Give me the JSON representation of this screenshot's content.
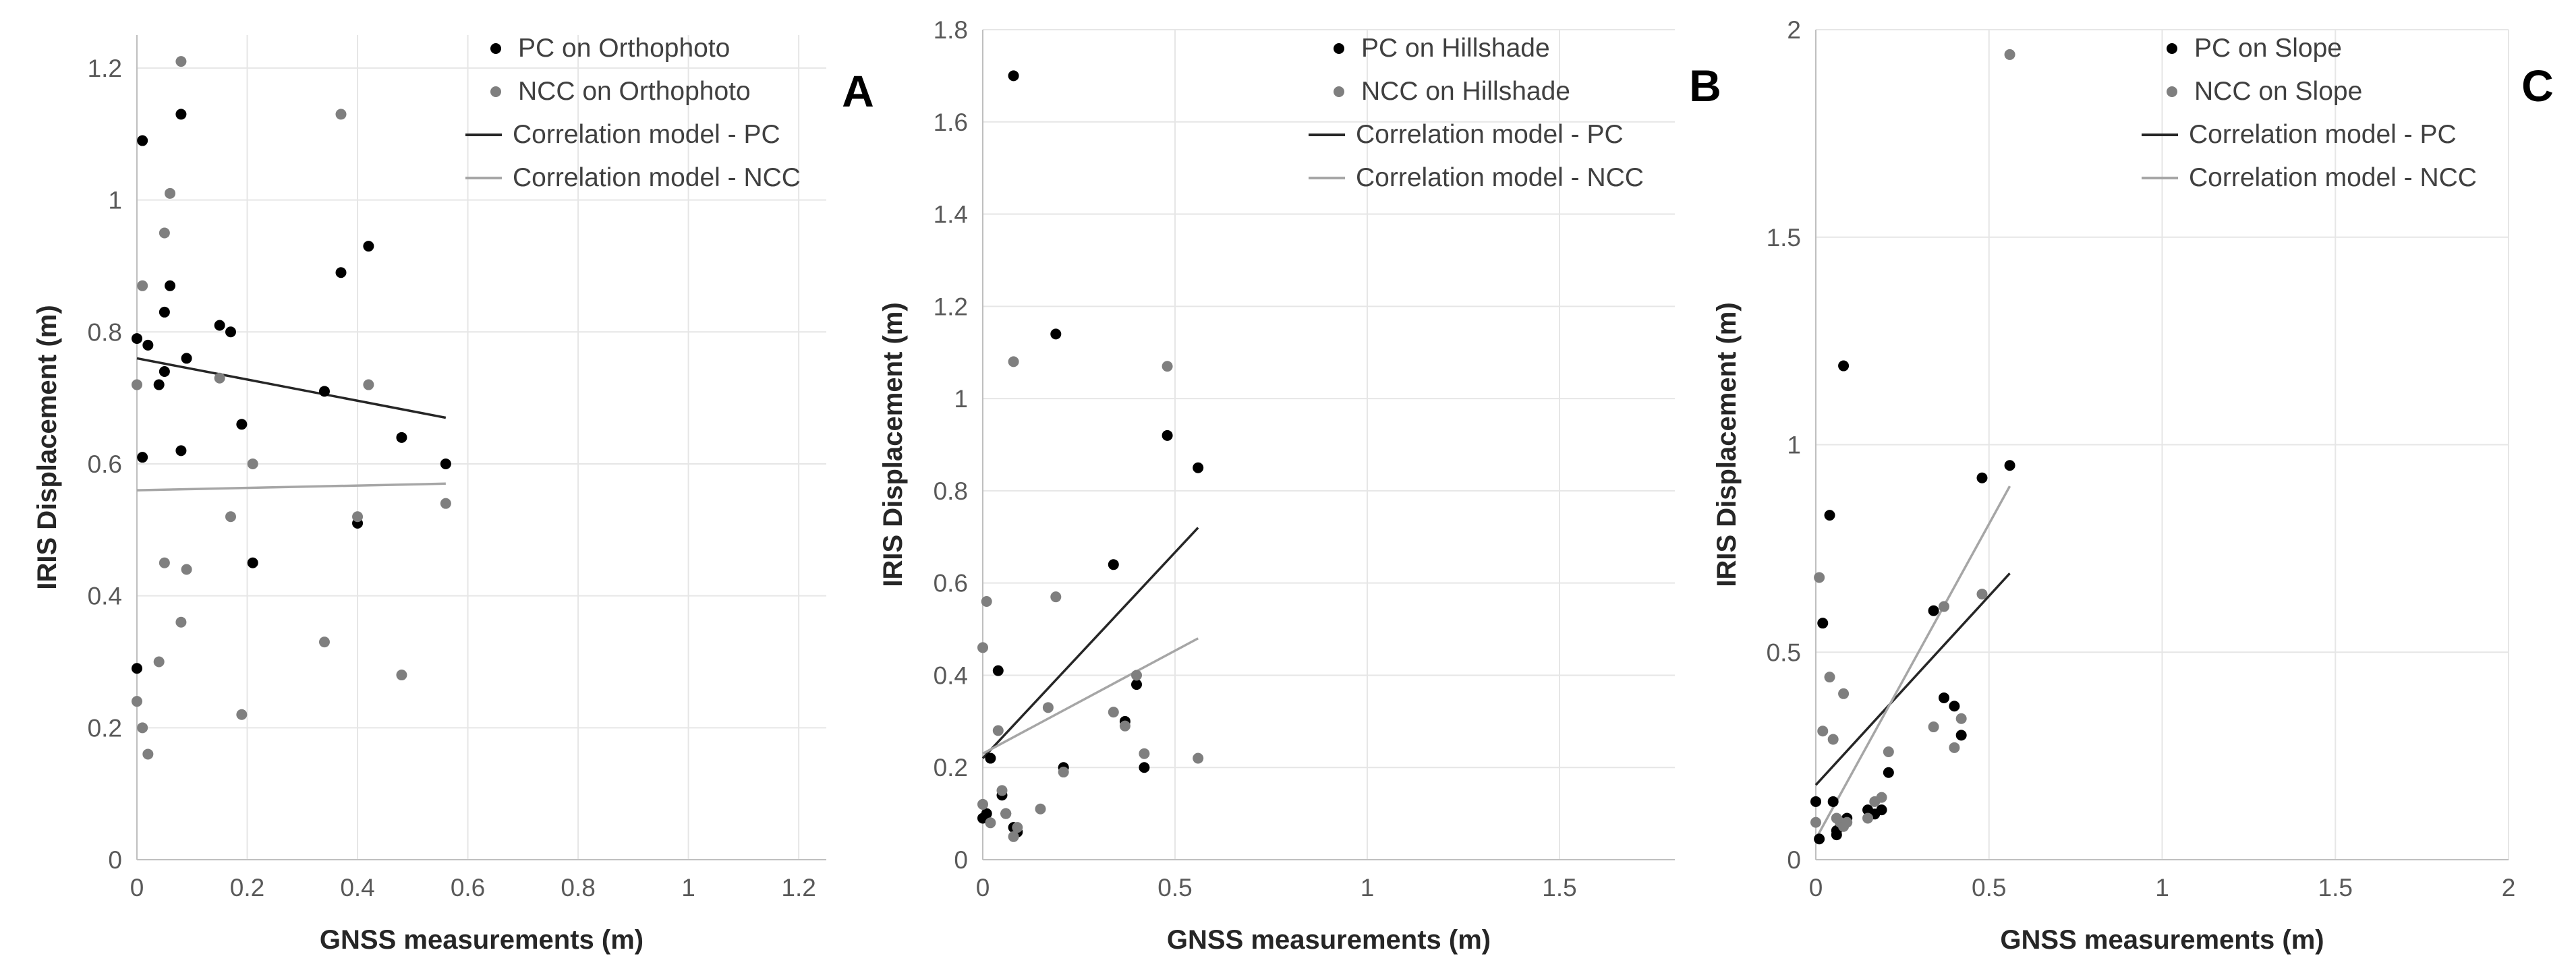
{
  "chart_data": [
    {
      "type": "scatter",
      "panel_label": "A",
      "xlabel": "GNSS measurements (m)",
      "ylabel": "IRIS Displacement (m)",
      "xlim": [
        0,
        1.25
      ],
      "ylim": [
        0,
        1.25
      ],
      "xticks": [
        0,
        0.2,
        0.4,
        0.6,
        0.8,
        1,
        1.2
      ],
      "xtick_labels": [
        "0",
        "0.2",
        "0.4",
        "0.6",
        "0.8",
        "1",
        "1.2"
      ],
      "yticks": [
        0,
        0.2,
        0.4,
        0.6,
        0.8,
        1,
        1.2
      ],
      "ytick_labels": [
        "0",
        "0.2",
        "0.4",
        "0.6",
        "0.8",
        "1",
        "1.2"
      ],
      "grid": true,
      "legend_position": "top-right",
      "series": [
        {
          "name": "PC on Orthophoto",
          "kind": "points",
          "color": "#000000",
          "points": [
            [
              0.0,
              0.29
            ],
            [
              0.0,
              0.79
            ],
            [
              0.01,
              1.09
            ],
            [
              0.01,
              0.61
            ],
            [
              0.02,
              0.78
            ],
            [
              0.04,
              0.72
            ],
            [
              0.05,
              0.74
            ],
            [
              0.05,
              0.83
            ],
            [
              0.06,
              0.87
            ],
            [
              0.08,
              1.13
            ],
            [
              0.08,
              0.62
            ],
            [
              0.09,
              0.76
            ],
            [
              0.15,
              0.81
            ],
            [
              0.17,
              0.8
            ],
            [
              0.19,
              0.66
            ],
            [
              0.21,
              0.45
            ],
            [
              0.34,
              0.71
            ],
            [
              0.37,
              0.89
            ],
            [
              0.4,
              0.51
            ],
            [
              0.42,
              0.93
            ],
            [
              0.48,
              0.64
            ],
            [
              0.56,
              0.6
            ]
          ]
        },
        {
          "name": "NCC on Orthophoto",
          "kind": "points",
          "color": "#7f7f7f",
          "points": [
            [
              0.0,
              0.24
            ],
            [
              0.0,
              0.72
            ],
            [
              0.01,
              0.87
            ],
            [
              0.01,
              0.2
            ],
            [
              0.02,
              0.16
            ],
            [
              0.04,
              0.3
            ],
            [
              0.05,
              0.45
            ],
            [
              0.05,
              0.95
            ],
            [
              0.06,
              1.01
            ],
            [
              0.08,
              1.21
            ],
            [
              0.08,
              0.36
            ],
            [
              0.09,
              0.44
            ],
            [
              0.15,
              0.73
            ],
            [
              0.17,
              0.52
            ],
            [
              0.19,
              0.22
            ],
            [
              0.21,
              0.6
            ],
            [
              0.34,
              0.33
            ],
            [
              0.37,
              1.13
            ],
            [
              0.4,
              0.52
            ],
            [
              0.42,
              0.72
            ],
            [
              0.48,
              0.28
            ],
            [
              0.56,
              0.54
            ]
          ]
        },
        {
          "name": "Correlation model - PC",
          "kind": "line",
          "color": "#262626",
          "x": [
            0,
            0.56
          ],
          "y": [
            0.76,
            0.67
          ]
        },
        {
          "name": "Correlation model - NCC",
          "kind": "line",
          "color": "#a6a6a6",
          "x": [
            0,
            0.56
          ],
          "y": [
            0.56,
            0.57
          ]
        }
      ]
    },
    {
      "type": "scatter",
      "panel_label": "B",
      "xlabel": "GNSS measurements (m)",
      "ylabel": "IRIS Displacement (m)",
      "xlim": [
        0,
        1.8
      ],
      "ylim": [
        0,
        1.8
      ],
      "xticks": [
        0,
        0.5,
        1,
        1.5
      ],
      "xtick_labels": [
        "0",
        "0.5",
        "1",
        "1.5"
      ],
      "yticks": [
        0,
        0.2,
        0.4,
        0.6,
        0.8,
        1,
        1.2,
        1.4,
        1.6,
        1.8
      ],
      "ytick_labels": [
        "0",
        "0.2",
        "0.4",
        "0.6",
        "0.8",
        "1",
        "1.2",
        "1.4",
        "1.6",
        "1.8"
      ],
      "grid": true,
      "legend_position": "top-right",
      "series": [
        {
          "name": "PC on Hillshade",
          "kind": "points",
          "color": "#000000",
          "points": [
            [
              0.0,
              0.09
            ],
            [
              0.01,
              0.1
            ],
            [
              0.02,
              0.22
            ],
            [
              0.04,
              0.41
            ],
            [
              0.05,
              0.14
            ],
            [
              0.06,
              0.1
            ],
            [
              0.08,
              1.7
            ],
            [
              0.08,
              0.07
            ],
            [
              0.09,
              0.06
            ],
            [
              0.19,
              1.14
            ],
            [
              0.21,
              0.2
            ],
            [
              0.34,
              0.64
            ],
            [
              0.37,
              0.3
            ],
            [
              0.4,
              0.38
            ],
            [
              0.42,
              0.2
            ],
            [
              0.48,
              0.92
            ],
            [
              0.56,
              0.85
            ]
          ]
        },
        {
          "name": "NCC on Hillshade",
          "kind": "points",
          "color": "#7f7f7f",
          "points": [
            [
              0.0,
              0.46
            ],
            [
              0.0,
              0.12
            ],
            [
              0.01,
              0.56
            ],
            [
              0.02,
              0.08
            ],
            [
              0.04,
              0.28
            ],
            [
              0.05,
              0.15
            ],
            [
              0.06,
              0.1
            ],
            [
              0.08,
              1.08
            ],
            [
              0.08,
              0.05
            ],
            [
              0.09,
              0.07
            ],
            [
              0.15,
              0.11
            ],
            [
              0.17,
              0.33
            ],
            [
              0.19,
              0.57
            ],
            [
              0.21,
              0.19
            ],
            [
              0.34,
              0.32
            ],
            [
              0.37,
              0.29
            ],
            [
              0.4,
              0.4
            ],
            [
              0.42,
              0.23
            ],
            [
              0.48,
              1.07
            ],
            [
              0.56,
              0.22
            ]
          ]
        },
        {
          "name": "Correlation model - PC",
          "kind": "line",
          "color": "#262626",
          "x": [
            0,
            0.56
          ],
          "y": [
            0.22,
            0.72
          ]
        },
        {
          "name": "Correlation model - NCC",
          "kind": "line",
          "color": "#a6a6a6",
          "x": [
            0,
            0.56
          ],
          "y": [
            0.23,
            0.48
          ]
        }
      ]
    },
    {
      "type": "scatter",
      "panel_label": "C",
      "xlabel": "GNSS measurements (m)",
      "ylabel": "IRIS Displacement (m)",
      "xlim": [
        0,
        2
      ],
      "ylim": [
        0,
        2
      ],
      "xticks": [
        0,
        0.5,
        1,
        1.5,
        2
      ],
      "xtick_labels": [
        "0",
        "0.5",
        "1",
        "1.5",
        "2"
      ],
      "yticks": [
        0,
        0.5,
        1,
        1.5,
        2
      ],
      "ytick_labels": [
        "0",
        "0.5",
        "1",
        "1.5",
        "2"
      ],
      "grid": true,
      "legend_position": "top-right",
      "series": [
        {
          "name": "PC on Slope",
          "kind": "points",
          "color": "#000000",
          "points": [
            [
              0.0,
              0.14
            ],
            [
              0.01,
              0.05
            ],
            [
              0.02,
              0.57
            ],
            [
              0.04,
              0.83
            ],
            [
              0.05,
              0.14
            ],
            [
              0.06,
              0.07
            ],
            [
              0.06,
              0.06
            ],
            [
              0.08,
              1.19
            ],
            [
              0.08,
              0.09
            ],
            [
              0.09,
              0.1
            ],
            [
              0.15,
              0.12
            ],
            [
              0.17,
              0.11
            ],
            [
              0.19,
              0.12
            ],
            [
              0.21,
              0.21
            ],
            [
              0.34,
              0.6
            ],
            [
              0.37,
              0.39
            ],
            [
              0.4,
              0.37
            ],
            [
              0.42,
              0.3
            ],
            [
              0.48,
              0.92
            ],
            [
              0.56,
              0.95
            ]
          ]
        },
        {
          "name": "NCC on Slope",
          "kind": "points",
          "color": "#7f7f7f",
          "points": [
            [
              0.0,
              0.09
            ],
            [
              0.01,
              0.68
            ],
            [
              0.02,
              0.31
            ],
            [
              0.04,
              0.44
            ],
            [
              0.05,
              0.29
            ],
            [
              0.06,
              0.1
            ],
            [
              0.07,
              0.09
            ],
            [
              0.08,
              0.4
            ],
            [
              0.08,
              0.08
            ],
            [
              0.09,
              0.09
            ],
            [
              0.15,
              0.1
            ],
            [
              0.17,
              0.14
            ],
            [
              0.19,
              0.15
            ],
            [
              0.21,
              0.26
            ],
            [
              0.34,
              0.32
            ],
            [
              0.37,
              0.61
            ],
            [
              0.4,
              0.27
            ],
            [
              0.42,
              0.34
            ],
            [
              0.48,
              0.64
            ],
            [
              0.56,
              1.94
            ]
          ]
        },
        {
          "name": "Correlation model - PC",
          "kind": "line",
          "color": "#262626",
          "x": [
            0,
            0.56
          ],
          "y": [
            0.18,
            0.69
          ]
        },
        {
          "name": "Correlation model - NCC",
          "kind": "line",
          "color": "#a6a6a6",
          "x": [
            0,
            0.56
          ],
          "y": [
            0.05,
            0.9
          ]
        }
      ]
    }
  ]
}
